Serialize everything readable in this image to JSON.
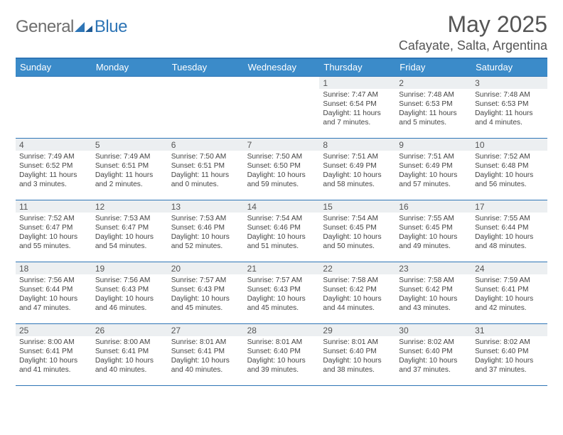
{
  "brand": {
    "word1": "General",
    "word2": "Blue"
  },
  "title": "May 2025",
  "subtitle": "Cafayate, Salta, Argentina",
  "colors": {
    "accent": "#2e75b6",
    "header_bg": "#3b8bc9",
    "daynum_bg": "#eceff1",
    "text": "#555555"
  },
  "dow": [
    "Sunday",
    "Monday",
    "Tuesday",
    "Wednesday",
    "Thursday",
    "Friday",
    "Saturday"
  ],
  "weeks": [
    [
      {
        "blank": true
      },
      {
        "blank": true
      },
      {
        "blank": true
      },
      {
        "blank": true
      },
      {
        "n": "1",
        "sr": "Sunrise: 7:47 AM",
        "ss": "Sunset: 6:54 PM",
        "d1": "Daylight: 11 hours",
        "d2": "and 7 minutes."
      },
      {
        "n": "2",
        "sr": "Sunrise: 7:48 AM",
        "ss": "Sunset: 6:53 PM",
        "d1": "Daylight: 11 hours",
        "d2": "and 5 minutes."
      },
      {
        "n": "3",
        "sr": "Sunrise: 7:48 AM",
        "ss": "Sunset: 6:53 PM",
        "d1": "Daylight: 11 hours",
        "d2": "and 4 minutes."
      }
    ],
    [
      {
        "n": "4",
        "sr": "Sunrise: 7:49 AM",
        "ss": "Sunset: 6:52 PM",
        "d1": "Daylight: 11 hours",
        "d2": "and 3 minutes."
      },
      {
        "n": "5",
        "sr": "Sunrise: 7:49 AM",
        "ss": "Sunset: 6:51 PM",
        "d1": "Daylight: 11 hours",
        "d2": "and 2 minutes."
      },
      {
        "n": "6",
        "sr": "Sunrise: 7:50 AM",
        "ss": "Sunset: 6:51 PM",
        "d1": "Daylight: 11 hours",
        "d2": "and 0 minutes."
      },
      {
        "n": "7",
        "sr": "Sunrise: 7:50 AM",
        "ss": "Sunset: 6:50 PM",
        "d1": "Daylight: 10 hours",
        "d2": "and 59 minutes."
      },
      {
        "n": "8",
        "sr": "Sunrise: 7:51 AM",
        "ss": "Sunset: 6:49 PM",
        "d1": "Daylight: 10 hours",
        "d2": "and 58 minutes."
      },
      {
        "n": "9",
        "sr": "Sunrise: 7:51 AM",
        "ss": "Sunset: 6:49 PM",
        "d1": "Daylight: 10 hours",
        "d2": "and 57 minutes."
      },
      {
        "n": "10",
        "sr": "Sunrise: 7:52 AM",
        "ss": "Sunset: 6:48 PM",
        "d1": "Daylight: 10 hours",
        "d2": "and 56 minutes."
      }
    ],
    [
      {
        "n": "11",
        "sr": "Sunrise: 7:52 AM",
        "ss": "Sunset: 6:47 PM",
        "d1": "Daylight: 10 hours",
        "d2": "and 55 minutes."
      },
      {
        "n": "12",
        "sr": "Sunrise: 7:53 AM",
        "ss": "Sunset: 6:47 PM",
        "d1": "Daylight: 10 hours",
        "d2": "and 54 minutes."
      },
      {
        "n": "13",
        "sr": "Sunrise: 7:53 AM",
        "ss": "Sunset: 6:46 PM",
        "d1": "Daylight: 10 hours",
        "d2": "and 52 minutes."
      },
      {
        "n": "14",
        "sr": "Sunrise: 7:54 AM",
        "ss": "Sunset: 6:46 PM",
        "d1": "Daylight: 10 hours",
        "d2": "and 51 minutes."
      },
      {
        "n": "15",
        "sr": "Sunrise: 7:54 AM",
        "ss": "Sunset: 6:45 PM",
        "d1": "Daylight: 10 hours",
        "d2": "and 50 minutes."
      },
      {
        "n": "16",
        "sr": "Sunrise: 7:55 AM",
        "ss": "Sunset: 6:45 PM",
        "d1": "Daylight: 10 hours",
        "d2": "and 49 minutes."
      },
      {
        "n": "17",
        "sr": "Sunrise: 7:55 AM",
        "ss": "Sunset: 6:44 PM",
        "d1": "Daylight: 10 hours",
        "d2": "and 48 minutes."
      }
    ],
    [
      {
        "n": "18",
        "sr": "Sunrise: 7:56 AM",
        "ss": "Sunset: 6:44 PM",
        "d1": "Daylight: 10 hours",
        "d2": "and 47 minutes."
      },
      {
        "n": "19",
        "sr": "Sunrise: 7:56 AM",
        "ss": "Sunset: 6:43 PM",
        "d1": "Daylight: 10 hours",
        "d2": "and 46 minutes."
      },
      {
        "n": "20",
        "sr": "Sunrise: 7:57 AM",
        "ss": "Sunset: 6:43 PM",
        "d1": "Daylight: 10 hours",
        "d2": "and 45 minutes."
      },
      {
        "n": "21",
        "sr": "Sunrise: 7:57 AM",
        "ss": "Sunset: 6:43 PM",
        "d1": "Daylight: 10 hours",
        "d2": "and 45 minutes."
      },
      {
        "n": "22",
        "sr": "Sunrise: 7:58 AM",
        "ss": "Sunset: 6:42 PM",
        "d1": "Daylight: 10 hours",
        "d2": "and 44 minutes."
      },
      {
        "n": "23",
        "sr": "Sunrise: 7:58 AM",
        "ss": "Sunset: 6:42 PM",
        "d1": "Daylight: 10 hours",
        "d2": "and 43 minutes."
      },
      {
        "n": "24",
        "sr": "Sunrise: 7:59 AM",
        "ss": "Sunset: 6:41 PM",
        "d1": "Daylight: 10 hours",
        "d2": "and 42 minutes."
      }
    ],
    [
      {
        "n": "25",
        "sr": "Sunrise: 8:00 AM",
        "ss": "Sunset: 6:41 PM",
        "d1": "Daylight: 10 hours",
        "d2": "and 41 minutes."
      },
      {
        "n": "26",
        "sr": "Sunrise: 8:00 AM",
        "ss": "Sunset: 6:41 PM",
        "d1": "Daylight: 10 hours",
        "d2": "and 40 minutes."
      },
      {
        "n": "27",
        "sr": "Sunrise: 8:01 AM",
        "ss": "Sunset: 6:41 PM",
        "d1": "Daylight: 10 hours",
        "d2": "and 40 minutes."
      },
      {
        "n": "28",
        "sr": "Sunrise: 8:01 AM",
        "ss": "Sunset: 6:40 PM",
        "d1": "Daylight: 10 hours",
        "d2": "and 39 minutes."
      },
      {
        "n": "29",
        "sr": "Sunrise: 8:01 AM",
        "ss": "Sunset: 6:40 PM",
        "d1": "Daylight: 10 hours",
        "d2": "and 38 minutes."
      },
      {
        "n": "30",
        "sr": "Sunrise: 8:02 AM",
        "ss": "Sunset: 6:40 PM",
        "d1": "Daylight: 10 hours",
        "d2": "and 37 minutes."
      },
      {
        "n": "31",
        "sr": "Sunrise: 8:02 AM",
        "ss": "Sunset: 6:40 PM",
        "d1": "Daylight: 10 hours",
        "d2": "and 37 minutes."
      }
    ]
  ]
}
